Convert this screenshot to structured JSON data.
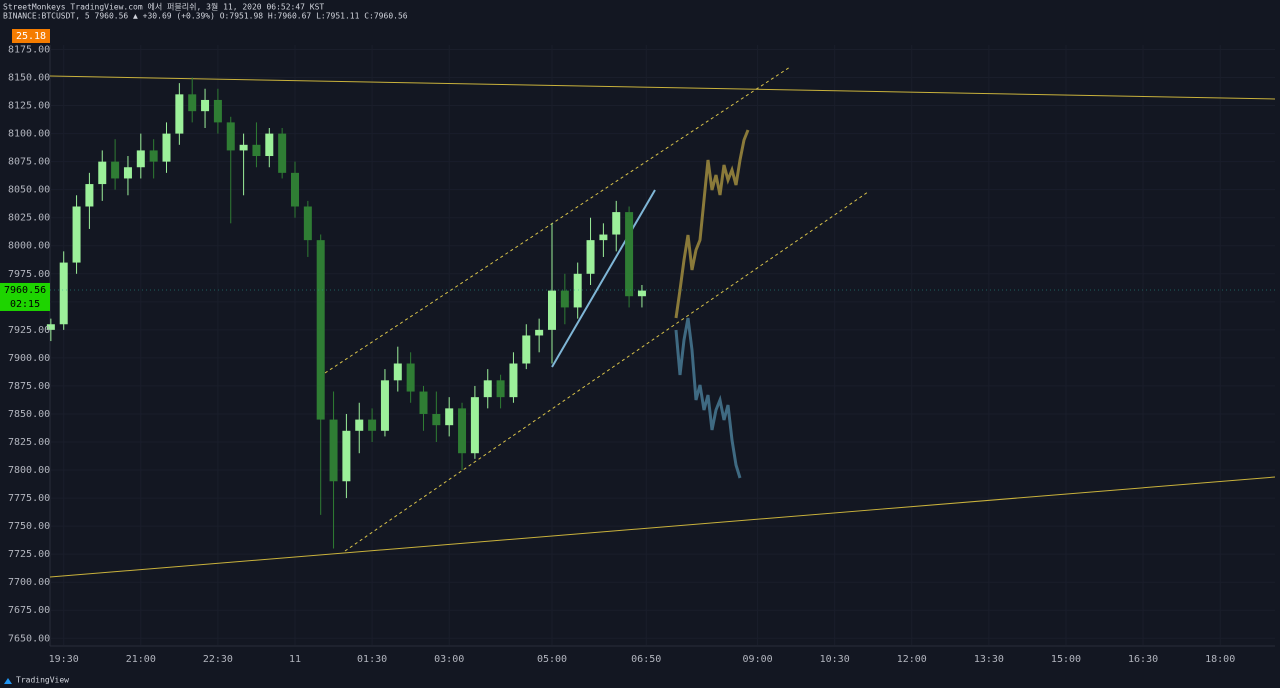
{
  "header": {
    "line1": "StreetMonkeys TradingView.com 에서 퍼블리쉬, 3월 11, 2020 06:52:47 KST",
    "line2": "BINANCE:BTCUSDT, 5 7960.56 ▲ +30.69 (+0.39%) O:7951.98 H:7960.67 L:7951.11 C:7960.56",
    "badge": "25.18"
  },
  "footer": {
    "brand": "TradingView"
  },
  "chart_data": {
    "type": "candlestick",
    "grid": true,
    "up_color": "#9cf09a",
    "down_color": "#2f7d34",
    "xlim": [
      1154,
      2584
    ],
    "xticks": [
      {
        "value": 1170,
        "label": "19:30"
      },
      {
        "value": 1260,
        "label": "21:00"
      },
      {
        "value": 1350,
        "label": "22:30"
      },
      {
        "value": 1440,
        "label": "11"
      },
      {
        "value": 1530,
        "label": "01:30"
      },
      {
        "value": 1620,
        "label": "03:00"
      },
      {
        "value": 1740,
        "label": "05:00"
      },
      {
        "value": 1850,
        "label": "06:50"
      },
      {
        "value": 1980,
        "label": "09:00"
      },
      {
        "value": 2070,
        "label": "10:30"
      },
      {
        "value": 2160,
        "label": "12:00"
      },
      {
        "value": 2250,
        "label": "13:30"
      },
      {
        "value": 2340,
        "label": "15:00"
      },
      {
        "value": 2430,
        "label": "16:30"
      },
      {
        "value": 2520,
        "label": "18:00"
      }
    ],
    "ylim": [
      7644,
      8179
    ],
    "yticks": [
      {
        "value": 7650,
        "label": "7650.00"
      },
      {
        "value": 7675,
        "label": "7675.00"
      },
      {
        "value": 7700,
        "label": "7700.00"
      },
      {
        "value": 7725,
        "label": "7725.00"
      },
      {
        "value": 7750,
        "label": "7750.00"
      },
      {
        "value": 7775,
        "label": "7775.00"
      },
      {
        "value": 7800,
        "label": "7800.00"
      },
      {
        "value": 7825,
        "label": "7825.00"
      },
      {
        "value": 7850,
        "label": "7850.00"
      },
      {
        "value": 7875,
        "label": "7875.00"
      },
      {
        "value": 7900,
        "label": "7900.00"
      },
      {
        "value": 7925,
        "label": "7925.00"
      },
      {
        "value": 7950,
        "label": "7950.00"
      },
      {
        "value": 7975,
        "label": "7975.00"
      },
      {
        "value": 8000,
        "label": "8000.00"
      },
      {
        "value": 8025,
        "label": "8025.00"
      },
      {
        "value": 8050,
        "label": "8050.00"
      },
      {
        "value": 8075,
        "label": "8075.00"
      },
      {
        "value": 8100,
        "label": "8100.00"
      },
      {
        "value": 8125,
        "label": "8125.00"
      },
      {
        "value": 8150,
        "label": "8150.00"
      },
      {
        "value": 8175,
        "label": "8175.00"
      }
    ],
    "last_price": 7960.56,
    "countdown": "02:15",
    "x": [
      1155,
      1170,
      1185,
      1200,
      1215,
      1230,
      1245,
      1260,
      1275,
      1290,
      1305,
      1320,
      1335,
      1350,
      1365,
      1380,
      1395,
      1410,
      1425,
      1440,
      1455,
      1470,
      1485,
      1500,
      1515,
      1530,
      1545,
      1560,
      1575,
      1590,
      1605,
      1620,
      1635,
      1650,
      1665,
      1680,
      1695,
      1710,
      1725,
      1740,
      1755,
      1770,
      1785,
      1800,
      1815,
      1830,
      1845
    ],
    "open": [
      7925,
      7930,
      7985,
      8035,
      8055,
      8075,
      8060,
      8070,
      8085,
      8075,
      8100,
      8135,
      8120,
      8130,
      8110,
      8085,
      8090,
      8080,
      8100,
      8065,
      8035,
      8005,
      7845,
      7790,
      7835,
      7845,
      7835,
      7880,
      7895,
      7870,
      7850,
      7840,
      7855,
      7815,
      7865,
      7880,
      7865,
      7895,
      7920,
      7925,
      7960,
      7945,
      7975,
      8005,
      8010,
      8030,
      7955
    ],
    "high": [
      7935,
      7995,
      8045,
      8065,
      8085,
      8095,
      8080,
      8100,
      8095,
      8110,
      8145,
      8150,
      8140,
      8140,
      8115,
      8100,
      8110,
      8105,
      8105,
      8075,
      8040,
      8010,
      7870,
      7850,
      7860,
      7855,
      7890,
      7910,
      7905,
      7875,
      7870,
      7865,
      7860,
      7875,
      7890,
      7885,
      7905,
      7930,
      7935,
      8020,
      7975,
      7985,
      8025,
      8020,
      8040,
      8035,
      7965
    ],
    "low": [
      7915,
      7925,
      7975,
      8015,
      8040,
      8050,
      8045,
      8060,
      8060,
      8065,
      8090,
      8110,
      8105,
      8100,
      8020,
      8045,
      8070,
      8070,
      8060,
      8025,
      7990,
      7760,
      7730,
      7775,
      7815,
      7825,
      7830,
      7870,
      7860,
      7835,
      7825,
      7830,
      7800,
      7810,
      7855,
      7855,
      7860,
      7890,
      7905,
      7895,
      7930,
      7935,
      7965,
      7990,
      7995,
      7945,
      7945
    ],
    "close": [
      7930,
      7985,
      8035,
      8055,
      8075,
      8060,
      8070,
      8085,
      8075,
      8100,
      8135,
      8120,
      8130,
      8110,
      8085,
      8090,
      8080,
      8100,
      8065,
      8035,
      8005,
      7845,
      7790,
      7835,
      7845,
      7835,
      7880,
      7895,
      7870,
      7850,
      7840,
      7855,
      7815,
      7865,
      7880,
      7865,
      7895,
      7920,
      7925,
      7960,
      7945,
      7975,
      8005,
      8010,
      8030,
      7955,
      7960
    ]
  }
}
